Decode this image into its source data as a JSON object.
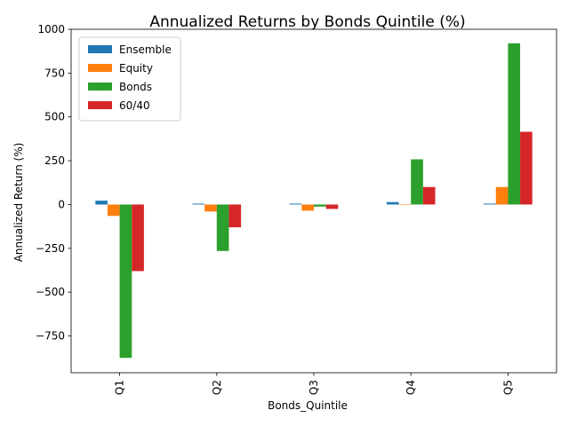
{
  "chart_data": {
    "type": "bar",
    "title": "Annualized Returns by Bonds Quintile (%)",
    "xlabel": "Bonds_Quintile",
    "ylabel": "Annualized Return (%)",
    "categories": [
      "Q1",
      "Q2",
      "Q3",
      "Q4",
      "Q5"
    ],
    "series": [
      {
        "name": "Ensemble",
        "color": "#1f77b4",
        "values": [
          22,
          5,
          5,
          14,
          5
        ]
      },
      {
        "name": "Equity",
        "color": "#ff7f0e",
        "values": [
          -65,
          -40,
          -35,
          0,
          100
        ]
      },
      {
        "name": "Bonds",
        "color": "#2ca02c",
        "values": [
          -875,
          -265,
          -12,
          258,
          920
        ]
      },
      {
        "name": "60/40",
        "color": "#d62728",
        "values": [
          -380,
          -130,
          -25,
          100,
          415
        ]
      }
    ],
    "ylim": [
      -960,
      1000
    ],
    "yticks": [
      -750,
      -500,
      -250,
      0,
      250,
      500,
      750,
      1000
    ],
    "ytick_labels": [
      "−750",
      "−500",
      "−250",
      "0",
      "250",
      "500",
      "750",
      "1000"
    ],
    "legend_position": "top-left",
    "grid": false
  }
}
